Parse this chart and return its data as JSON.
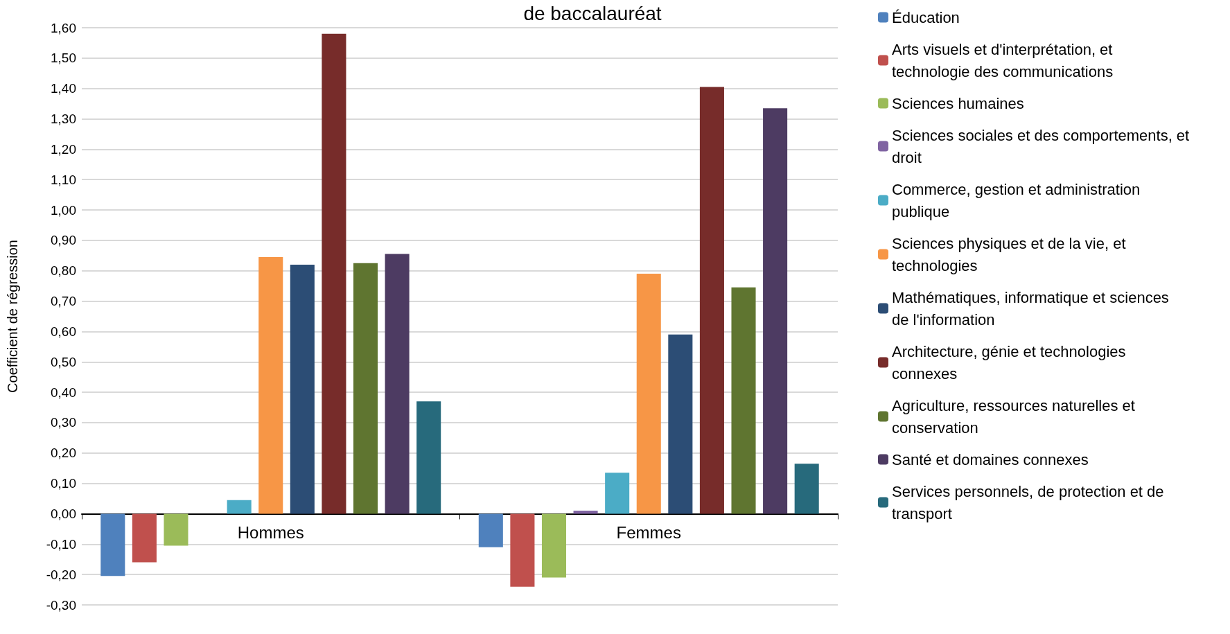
{
  "chart_data": {
    "type": "bar",
    "title": "de baccalauréat",
    "ylabel": "Coefficient de régression",
    "categories": [
      "Hommes",
      "Femmes"
    ],
    "series": [
      {
        "name": "Éducation",
        "color": "#4f81bd",
        "values": [
          -0.205,
          -0.11
        ]
      },
      {
        "name": "Arts visuels et d'interprétation, et technologie des communications",
        "color": "#c0504d",
        "values": [
          -0.16,
          -0.24
        ]
      },
      {
        "name": "Sciences humaines",
        "color": "#9bbb59",
        "values": [
          -0.105,
          -0.21
        ]
      },
      {
        "name": "Sciences sociales et des comportements, et droit",
        "color": "#8064a2",
        "values": [
          0,
          0.01
        ]
      },
      {
        "name": "Commerce, gestion et administration publique",
        "color": "#4bacc6",
        "values": [
          0.045,
          0.135
        ]
      },
      {
        "name": "Sciences physiques et de la vie, et technologies",
        "color": "#f79646",
        "values": [
          0.845,
          0.79
        ]
      },
      {
        "name": "Mathématiques, informatique et sciences de l'information",
        "color": "#2c4d75",
        "values": [
          0.82,
          0.59
        ]
      },
      {
        "name": "Architecture, génie et technologies connexes",
        "color": "#772c2a",
        "values": [
          1.58,
          1.405
        ]
      },
      {
        "name": "Agriculture, ressources naturelles et conservation",
        "color": "#5f7530",
        "values": [
          0.825,
          0.745
        ]
      },
      {
        "name": "Santé et domaines connexes",
        "color": "#4d3b62",
        "values": [
          0.855,
          1.335
        ]
      },
      {
        "name": "Services personnels, de protection et de transport",
        "color": "#276a7c",
        "values": [
          0.37,
          0.165
        ]
      }
    ],
    "ylim": [
      -0.3,
      1.6
    ],
    "yticks": [
      {
        "value": -0.3,
        "label": "-0,30"
      },
      {
        "value": -0.2,
        "label": "-0,20"
      },
      {
        "value": -0.1,
        "label": "-0,10"
      },
      {
        "value": 0,
        "label": "0,00"
      },
      {
        "value": 0.1,
        "label": "0,10"
      },
      {
        "value": 0.2,
        "label": "0,20"
      },
      {
        "value": 0.3,
        "label": "0,30"
      },
      {
        "value": 0.4,
        "label": "0,40"
      },
      {
        "value": 0.5,
        "label": "0,50"
      },
      {
        "value": 0.6,
        "label": "0,60"
      },
      {
        "value": 0.7,
        "label": "0,70"
      },
      {
        "value": 0.8,
        "label": "0,80"
      },
      {
        "value": 0.9,
        "label": "0,90"
      },
      {
        "value": 1.0,
        "label": "1,00"
      },
      {
        "value": 1.1,
        "label": "1,10"
      },
      {
        "value": 1.2,
        "label": "1,20"
      },
      {
        "value": 1.3,
        "label": "1,30"
      },
      {
        "value": 1.4,
        "label": "1,40"
      },
      {
        "value": 1.5,
        "label": "1,50"
      },
      {
        "value": 1.6,
        "label": "1,60"
      }
    ],
    "grid": "y",
    "legend": "right"
  }
}
